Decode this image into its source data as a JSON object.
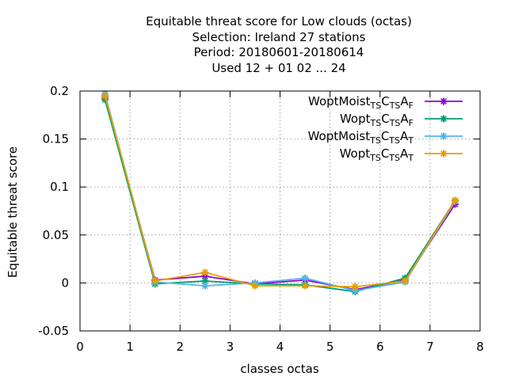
{
  "chart_data": {
    "type": "line",
    "title_lines": [
      "Equitable threat score  for Low clouds (octas)",
      "Selection: Ireland     27 stations",
      "Period: 20180601-20180614",
      "Used  12 + 01 02 ... 24"
    ],
    "xlabel": "classes octas",
    "ylabel": "Equitable threat score",
    "xlim": [
      0,
      8
    ],
    "ylim": [
      -0.05,
      0.2
    ],
    "xticks": [
      0,
      1,
      2,
      3,
      4,
      5,
      6,
      7,
      8
    ],
    "yticks": [
      -0.05,
      0,
      0.05,
      0.1,
      0.15,
      0.2
    ],
    "ytick_labels": [
      "-0.05",
      "0",
      "0.05",
      "0.1",
      "0.15",
      "0.2"
    ],
    "grid": true,
    "legend_position": "top-right",
    "x": [
      0.5,
      1.5,
      2.5,
      3.5,
      4.5,
      5.5,
      6.5,
      7.5
    ],
    "series": [
      {
        "name": "WoptMoist_TSC_TSA_F",
        "legend": {
          "base": "WoptMoist",
          "parts": [
            [
              "TS",
              "C"
            ],
            [
              "TS",
              "A"
            ],
            [
              "F",
              ""
            ]
          ]
        },
        "color": "#9400d3",
        "values": [
          0.193,
          0.003,
          0.007,
          -0.001,
          0.003,
          -0.007,
          0.003,
          0.082
        ]
      },
      {
        "name": "Wopt_TSC_TSA_F",
        "legend": {
          "base": "Wopt",
          "parts": [
            [
              "TS",
              "C"
            ],
            [
              "TS",
              "A"
            ],
            [
              "F",
              ""
            ]
          ]
        },
        "color": "#009e73",
        "values": [
          0.191,
          -0.001,
          0.002,
          -0.001,
          -0.002,
          -0.009,
          0.005,
          0.086
        ]
      },
      {
        "name": "WoptMoist_TSC_TSA_T",
        "legend": {
          "base": "WoptMoist",
          "parts": [
            [
              "TS",
              "C"
            ],
            [
              "TS",
              "A"
            ],
            [
              "T",
              ""
            ]
          ]
        },
        "color": "#56b4e9",
        "values": [
          0.197,
          0.001,
          -0.003,
          0.0,
          0.005,
          -0.008,
          0.001,
          0.085
        ]
      },
      {
        "name": "Wopt_TSC_TSA_T",
        "legend": {
          "base": "Wopt",
          "parts": [
            [
              "TS",
              "C"
            ],
            [
              "TS",
              "A"
            ],
            [
              "T",
              ""
            ]
          ]
        },
        "color": "#e69f00",
        "values": [
          0.195,
          0.002,
          0.011,
          -0.003,
          -0.003,
          -0.004,
          0.002,
          0.086
        ]
      }
    ]
  }
}
